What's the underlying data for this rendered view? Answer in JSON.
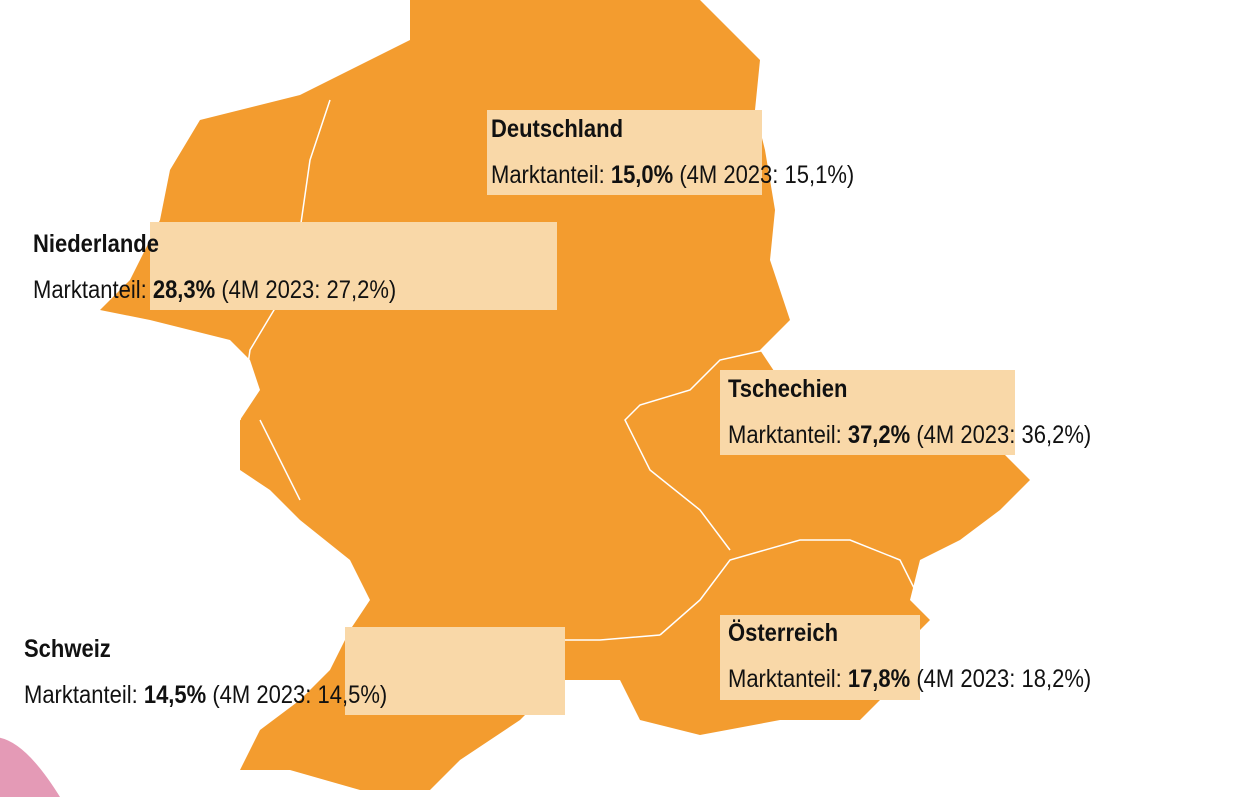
{
  "regions": [
    {
      "title": "Deutschland",
      "share_label": "Marktanteil:",
      "share": "15,0%",
      "previous": "(4M 2023: 15,1%)"
    },
    {
      "title": "Niederlande",
      "share_label": "Marktanteil:",
      "share": "28,3%",
      "previous": "(4M 2023: 27,2%)"
    },
    {
      "title": "Tschechien",
      "share_label": "Marktanteil:",
      "share": "37,2%",
      "previous": "(4M 2023: 36,2%)"
    },
    {
      "title": "Österreich",
      "share_label": "Marktanteil:",
      "share": "17,8%",
      "previous": "(4M 2023: 18,2%)"
    },
    {
      "title": "Schweiz",
      "share_label": "Marktanteil:",
      "share": "14,5%",
      "previous": "(4M 2023: 14,5%)"
    }
  ]
}
